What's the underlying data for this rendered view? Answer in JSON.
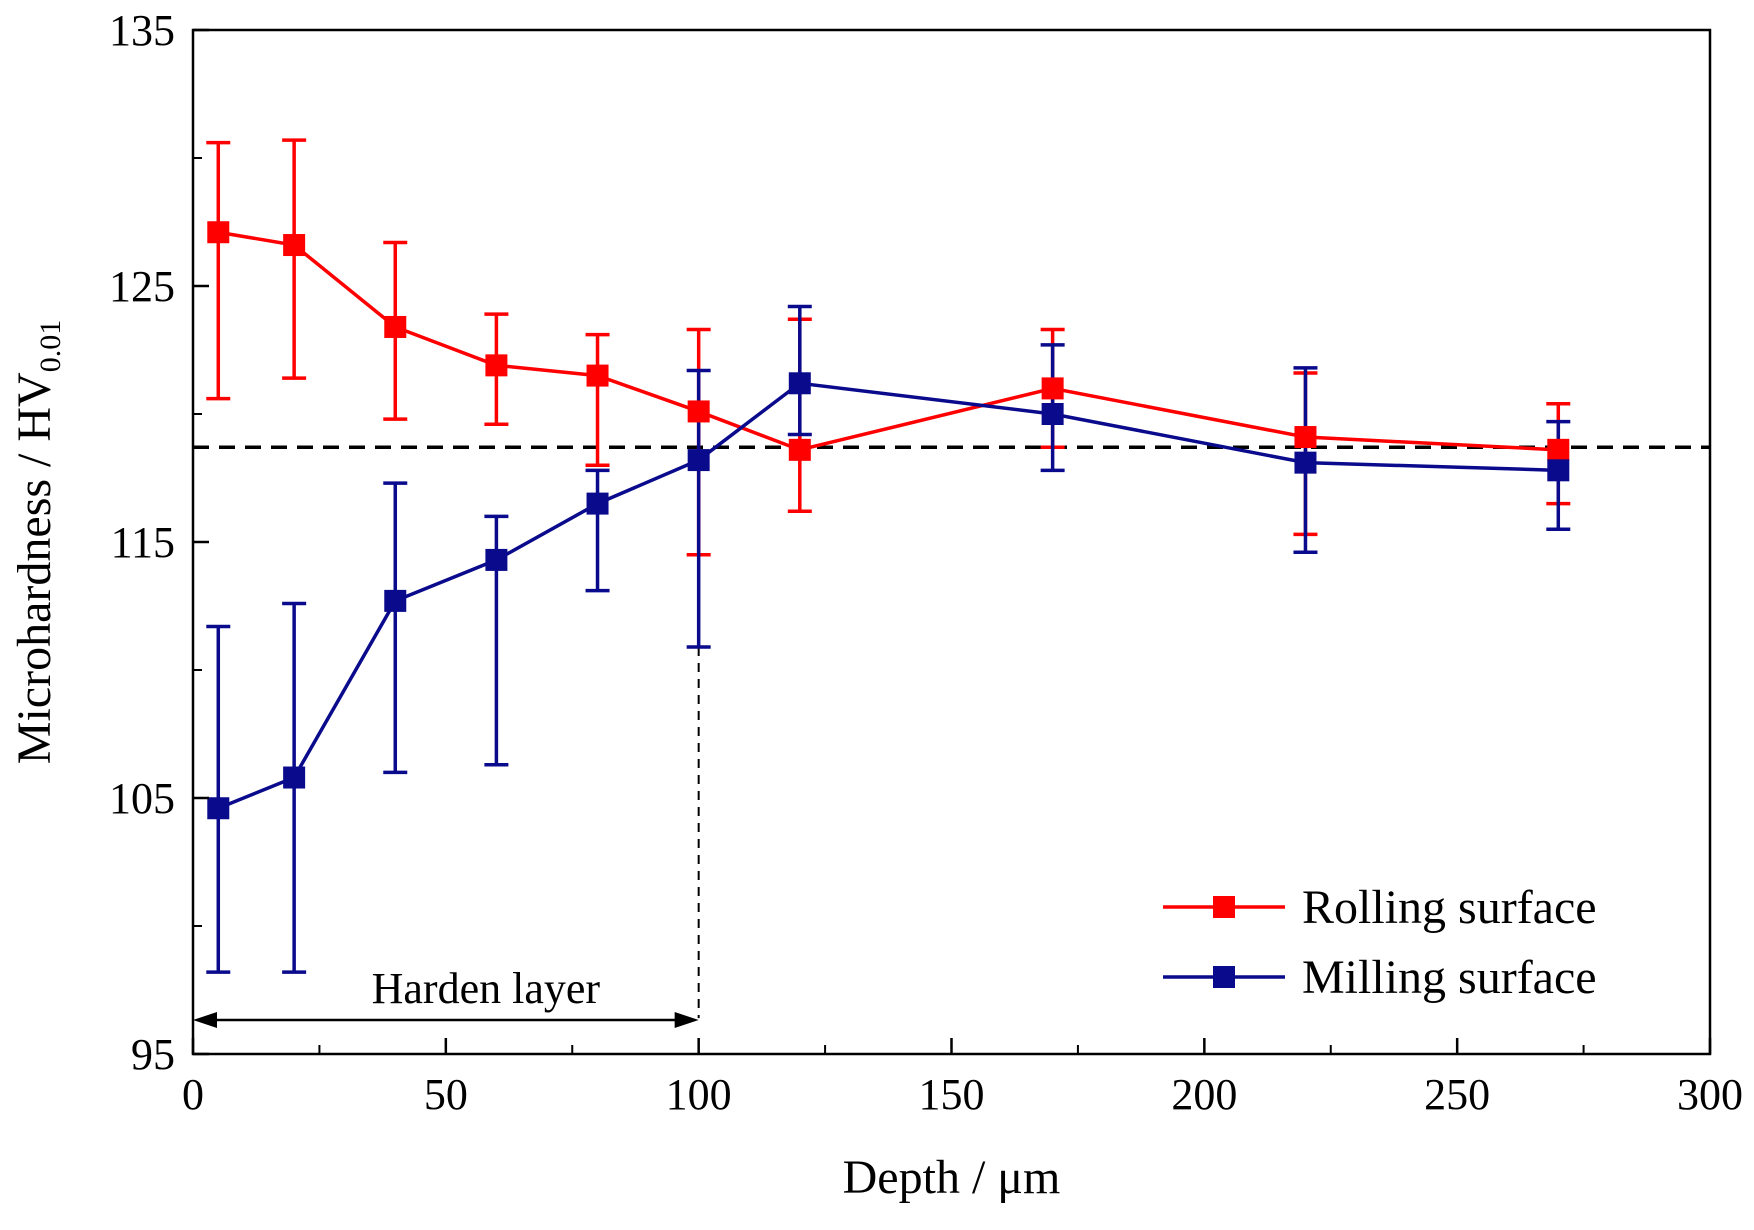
{
  "chart_data": {
    "type": "line",
    "xlabel": "Depth / μm",
    "ylabel_main": "Microhardness / HV",
    "ylabel_sub": "0.01",
    "xlim": [
      0,
      300
    ],
    "ylim": [
      95,
      135
    ],
    "xticks": [
      0,
      50,
      100,
      150,
      200,
      250,
      300
    ],
    "yticks": [
      95,
      105,
      115,
      125,
      135
    ],
    "grid": false,
    "legend_position": "bottom-right",
    "reference_line_y": 118.7,
    "harden_layer": {
      "label": "Harden layer",
      "x_start": 0,
      "x_end": 100
    },
    "x": [
      5,
      20,
      40,
      60,
      80,
      100,
      120,
      170,
      220,
      270
    ],
    "series": [
      {
        "name": "Rolling surface",
        "color": "#ff0000",
        "values": [
          127.1,
          126.6,
          123.4,
          121.9,
          121.5,
          120.1,
          118.6,
          121.0,
          119.1,
          118.6
        ],
        "err_low": [
          120.6,
          121.4,
          119.8,
          119.6,
          118.0,
          114.5,
          116.2,
          118.7,
          115.3,
          116.5
        ],
        "err_high": [
          130.6,
          130.7,
          126.7,
          123.9,
          123.1,
          123.3,
          123.7,
          123.3,
          121.6,
          120.4
        ]
      },
      {
        "name": "Milling surface",
        "color": "#0a0a8c",
        "values": [
          104.6,
          105.8,
          112.7,
          114.3,
          116.5,
          118.2,
          121.2,
          120.0,
          118.1,
          117.8
        ],
        "err_low": [
          98.2,
          98.2,
          106.0,
          106.3,
          113.1,
          110.9,
          119.2,
          117.8,
          114.6,
          115.5
        ],
        "err_high": [
          111.7,
          112.6,
          117.3,
          116.0,
          117.8,
          121.7,
          124.2,
          122.7,
          121.8,
          119.7
        ]
      }
    ]
  }
}
